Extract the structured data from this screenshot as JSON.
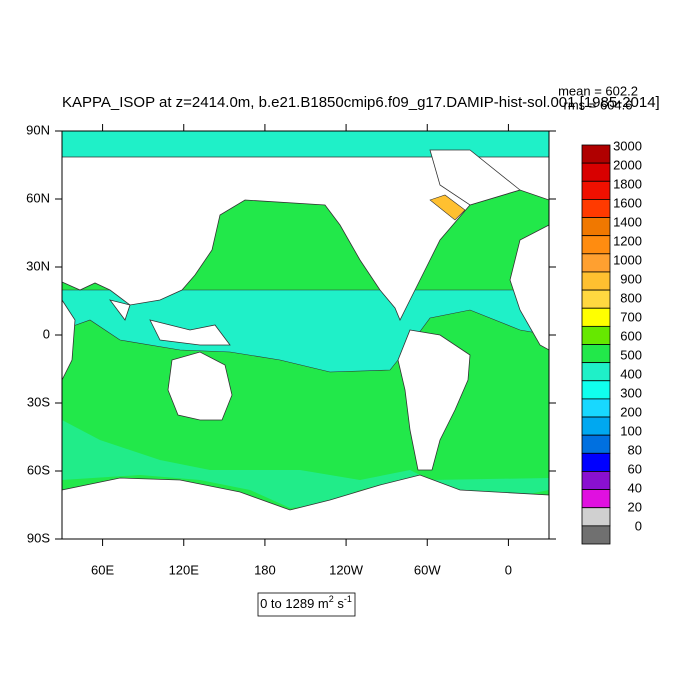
{
  "chart_data": {
    "type": "map",
    "title": "KAPPA_ISOP at z=2414.0m, b.e21.B1850cmip6.f09_g17.DAMIP-hist-sol.001 [1985-2014]",
    "annotations": [
      "mean = 602.2",
      "rms = 604.6"
    ],
    "xlim": [
      30,
      390
    ],
    "ylim": [
      -90,
      90
    ],
    "xticks": [
      {
        "value": 60,
        "label": "60E"
      },
      {
        "value": 120,
        "label": "120E"
      },
      180,
      {
        "value": 240,
        "label": "120W"
      },
      {
        "value": 300,
        "label": "60W"
      },
      {
        "value": 360,
        "label": "0"
      }
    ],
    "yticks": [
      {
        "value": -90,
        "label": "90S"
      },
      {
        "value": -60,
        "label": "60S"
      },
      {
        "value": -30,
        "label": "30S"
      },
      0,
      {
        "value": 30,
        "label": "30N"
      },
      {
        "value": 60,
        "label": "60N"
      },
      {
        "value": 90,
        "label": "90N"
      }
    ],
    "colorbar": {
      "levels": [
        3000,
        2000,
        1800,
        1600,
        1400,
        1200,
        1000,
        900,
        800,
        700,
        600,
        500,
        400,
        300,
        200,
        100,
        80,
        60,
        40,
        20,
        0
      ],
      "colors": [
        "#b00000",
        "#d80000",
        "#f01000",
        "#ff3a00",
        "#f07800",
        "#ff8c10",
        "#ffa030",
        "#ffc030",
        "#ffd840",
        "#ffff00",
        "#66e800",
        "#22e84a",
        "#1ff0c8",
        "#10ffee",
        "#18d8ff",
        "#00a8f0",
        "#0070e0",
        "#0000ff",
        "#8a10d0",
        "#e010e0",
        "#d0d0d0",
        "#707070"
      ]
    },
    "units": {
      "text": "0 to 1289 m",
      "sup1": "2",
      "mid": " s",
      "sup2": "-1"
    }
  }
}
